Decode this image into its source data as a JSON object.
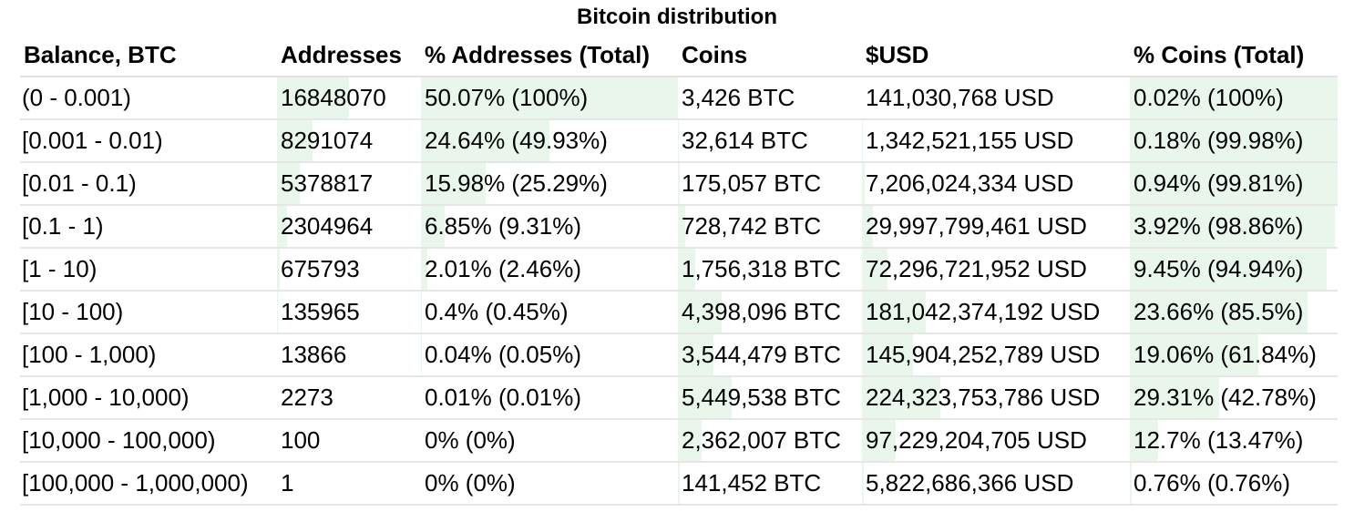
{
  "title": "Bitcoin distribution",
  "headers": [
    "Balance, BTC",
    "Addresses",
    "% Addresses (Total)",
    "Coins",
    "$USD",
    "% Coins (Total)"
  ],
  "colors": {
    "bar": "#e9f6ec",
    "grid": "#e6e6e6"
  },
  "rows": [
    {
      "balance": "(0 - 0.001)",
      "addresses": "16848070",
      "pct_addresses": "50.07% (100%)",
      "coins": "3,426 BTC",
      "usd": "141,030,768 USD",
      "pct_coins": "0.02% (100%)",
      "addr_share": 0.5007,
      "addr_total": 1.0,
      "coin_share": 0.0002,
      "coin_total": 1.0
    },
    {
      "balance": "[0.001 - 0.01)",
      "addresses": "8291074",
      "pct_addresses": "24.64% (49.93%)",
      "coins": "32,614 BTC",
      "usd": "1,342,521,155 USD",
      "pct_coins": "0.18% (99.98%)",
      "addr_share": 0.2464,
      "addr_total": 0.4993,
      "coin_share": 0.0018,
      "coin_total": 0.9998
    },
    {
      "balance": "[0.01 - 0.1)",
      "addresses": "5378817",
      "pct_addresses": "15.98% (25.29%)",
      "coins": "175,057 BTC",
      "usd": "7,206,024,334 USD",
      "pct_coins": "0.94% (99.81%)",
      "addr_share": 0.1598,
      "addr_total": 0.2529,
      "coin_share": 0.0094,
      "coin_total": 0.9981
    },
    {
      "balance": "[0.1 - 1)",
      "addresses": "2304964",
      "pct_addresses": "6.85% (9.31%)",
      "coins": "728,742 BTC",
      "usd": "29,997,799,461 USD",
      "pct_coins": "3.92% (98.86%)",
      "addr_share": 0.0685,
      "addr_total": 0.0931,
      "coin_share": 0.0392,
      "coin_total": 0.9886
    },
    {
      "balance": "[1 - 10)",
      "addresses": "675793",
      "pct_addresses": "2.01% (2.46%)",
      "coins": "1,756,318 BTC",
      "usd": "72,296,721,952 USD",
      "pct_coins": "9.45% (94.94%)",
      "addr_share": 0.0201,
      "addr_total": 0.0246,
      "coin_share": 0.0945,
      "coin_total": 0.9494
    },
    {
      "balance": "[10 - 100)",
      "addresses": "135965",
      "pct_addresses": "0.4% (0.45%)",
      "coins": "4,398,096 BTC",
      "usd": "181,042,374,192 USD",
      "pct_coins": "23.66% (85.5%)",
      "addr_share": 0.004,
      "addr_total": 0.0045,
      "coin_share": 0.2366,
      "coin_total": 0.855
    },
    {
      "balance": "[100 - 1,000)",
      "addresses": "13866",
      "pct_addresses": "0.04% (0.05%)",
      "coins": "3,544,479 BTC",
      "usd": "145,904,252,789 USD",
      "pct_coins": "19.06% (61.84%)",
      "addr_share": 0.0004,
      "addr_total": 0.0005,
      "coin_share": 0.1906,
      "coin_total": 0.6184
    },
    {
      "balance": "[1,000 - 10,000)",
      "addresses": "2273",
      "pct_addresses": "0.01% (0.01%)",
      "coins": "5,449,538 BTC",
      "usd": "224,323,753,786 USD",
      "pct_coins": "29.31% (42.78%)",
      "addr_share": 0.0001,
      "addr_total": 0.0001,
      "coin_share": 0.2931,
      "coin_total": 0.4278
    },
    {
      "balance": "[10,000 - 100,000)",
      "addresses": "100",
      "pct_addresses": "0% (0%)",
      "coins": "2,362,007 BTC",
      "usd": "97,229,204,705 USD",
      "pct_coins": "12.7% (13.47%)",
      "addr_share": 0.0,
      "addr_total": 0.0,
      "coin_share": 0.127,
      "coin_total": 0.1347
    },
    {
      "balance": "[100,000 - 1,000,000)",
      "addresses": "1",
      "pct_addresses": "0% (0%)",
      "coins": "141,452 BTC",
      "usd": "5,822,686,366 USD",
      "pct_coins": "0.76% (0.76%)",
      "addr_share": 0.0,
      "addr_total": 0.0,
      "coin_share": 0.0076,
      "coin_total": 0.0076
    }
  ]
}
